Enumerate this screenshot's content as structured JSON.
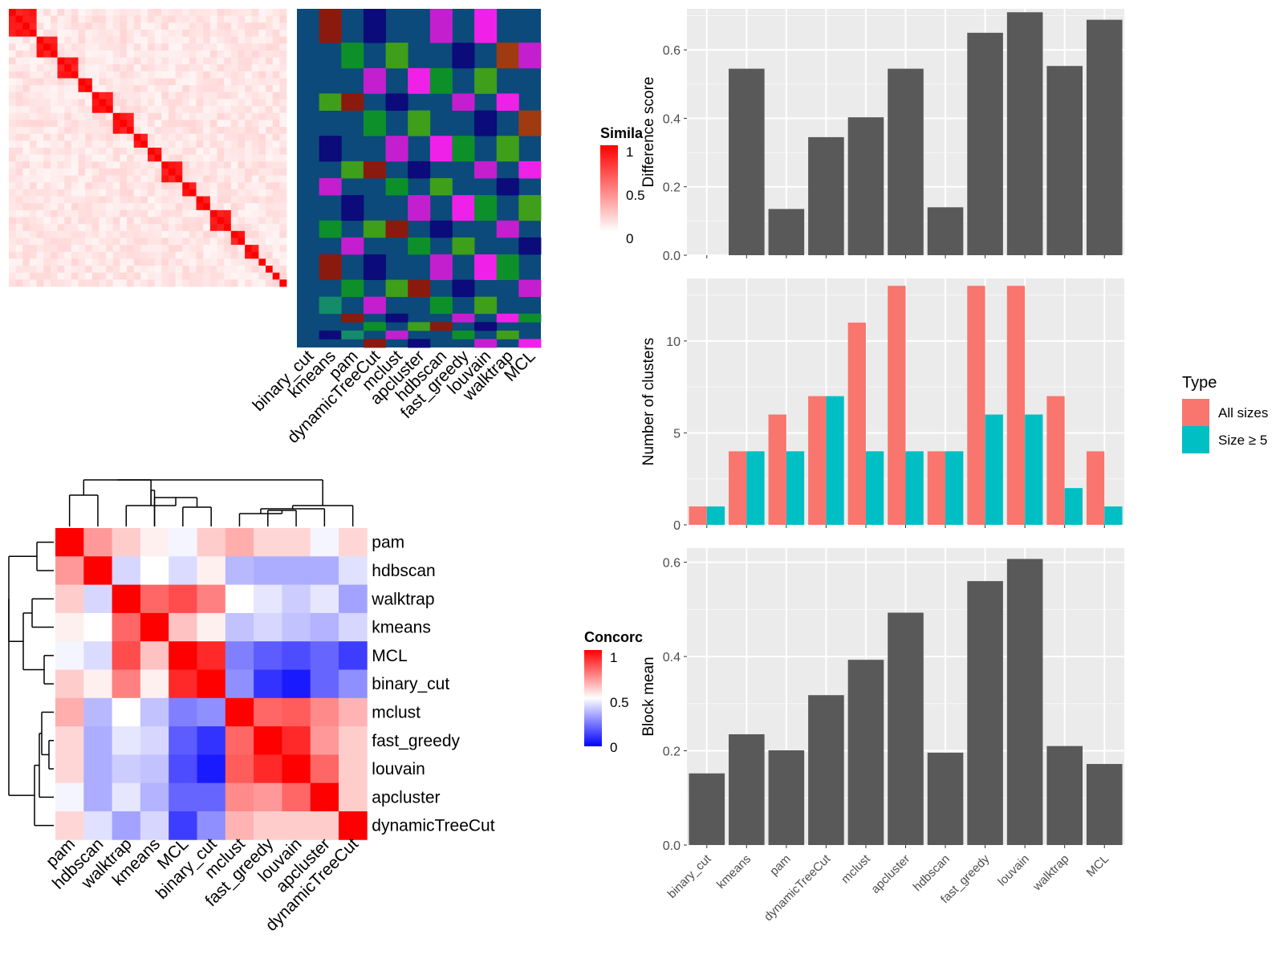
{
  "methods": [
    "binary_cut",
    "kmeans",
    "pam",
    "dynamicTreeCut",
    "mclust",
    "apcluster",
    "hdbscan",
    "fast_greedy",
    "louvain",
    "walktrap",
    "MCL"
  ],
  "similarity_panel": {
    "legend_title": "Simila",
    "legend_ticks": [
      "1",
      "0.5",
      "0"
    ],
    "colors": {
      "low": "#ffffff",
      "high": "#ff0000"
    },
    "n_terms": 40
  },
  "cluster_assignment_panel": {
    "background_color": "#0b4a7a",
    "columns": [
      "binary_cut",
      "kmeans",
      "pam",
      "dynamicTreeCut",
      "mclust",
      "apcluster",
      "hdbscan",
      "fast_greedy",
      "louvain",
      "walktrap",
      "MCL"
    ]
  },
  "concordance_panel": {
    "legend_title": "Concorc",
    "legend_ticks": [
      "1",
      "0.5",
      "0"
    ],
    "colors": {
      "low": "#0000ff",
      "mid": "#ffffff",
      "high": "#ff0000"
    },
    "order": [
      "pam",
      "hdbscan",
      "walktrap",
      "kmeans",
      "MCL",
      "binary_cut",
      "mclust",
      "fast_greedy",
      "louvain",
      "apcluster",
      "dynamicTreeCut"
    ],
    "matrix": [
      [
        1.0,
        0.7,
        0.6,
        0.53,
        0.48,
        0.6,
        0.66,
        0.58,
        0.58,
        0.48,
        0.58
      ],
      [
        0.7,
        1.0,
        0.42,
        0.5,
        0.43,
        0.53,
        0.36,
        0.34,
        0.34,
        0.34,
        0.44
      ],
      [
        0.6,
        0.42,
        1.0,
        0.8,
        0.85,
        0.75,
        0.5,
        0.45,
        0.4,
        0.45,
        0.32
      ],
      [
        0.53,
        0.5,
        0.8,
        1.0,
        0.62,
        0.53,
        0.38,
        0.42,
        0.38,
        0.35,
        0.42
      ],
      [
        0.48,
        0.43,
        0.85,
        0.62,
        1.0,
        0.92,
        0.25,
        0.18,
        0.15,
        0.2,
        0.12
      ],
      [
        0.6,
        0.53,
        0.75,
        0.53,
        0.92,
        1.0,
        0.28,
        0.1,
        0.05,
        0.2,
        0.28
      ],
      [
        0.66,
        0.36,
        0.5,
        0.38,
        0.25,
        0.28,
        1.0,
        0.8,
        0.82,
        0.73,
        0.65
      ],
      [
        0.58,
        0.34,
        0.45,
        0.42,
        0.18,
        0.1,
        0.8,
        1.0,
        0.92,
        0.7,
        0.6
      ],
      [
        0.58,
        0.34,
        0.4,
        0.38,
        0.15,
        0.05,
        0.82,
        0.92,
        1.0,
        0.8,
        0.6
      ],
      [
        0.48,
        0.34,
        0.45,
        0.35,
        0.2,
        0.2,
        0.73,
        0.7,
        0.8,
        1.0,
        0.6
      ],
      [
        0.58,
        0.44,
        0.32,
        0.42,
        0.12,
        0.28,
        0.65,
        0.6,
        0.6,
        0.6,
        1.0
      ]
    ]
  },
  "chart_data": [
    {
      "type": "bar",
      "categories": [
        "binary_cut",
        "kmeans",
        "pam",
        "dynamicTreeCut",
        "mclust",
        "apcluster",
        "hdbscan",
        "fast_greedy",
        "louvain",
        "walktrap",
        "MCL"
      ],
      "values": [
        0.0,
        0.545,
        0.135,
        0.345,
        0.403,
        0.545,
        0.14,
        0.65,
        0.71,
        0.553,
        0.688
      ],
      "title": "",
      "xlabel": "",
      "ylabel": "Difference score",
      "ylim": [
        0,
        0.72
      ],
      "yticks": [
        "0.0",
        "0.2",
        "0.4",
        "0.6"
      ],
      "bar_color": "#595959",
      "grid": true
    },
    {
      "type": "bar",
      "categories": [
        "binary_cut",
        "kmeans",
        "pam",
        "dynamicTreeCut",
        "mclust",
        "apcluster",
        "hdbscan",
        "fast_greedy",
        "louvain",
        "walktrap",
        "MCL"
      ],
      "series": [
        {
          "name": "All sizes",
          "color": "#f8766d",
          "values": [
            1,
            4,
            6,
            7,
            11,
            13,
            4,
            13,
            13,
            7,
            4
          ]
        },
        {
          "name": "Size ≥ 5",
          "color": "#00bfc4",
          "values": [
            1,
            4,
            4,
            7,
            4,
            4,
            4,
            6,
            6,
            2,
            1
          ]
        }
      ],
      "title": "",
      "xlabel": "",
      "ylabel": "Number of clusters",
      "ylim": [
        0,
        13.4
      ],
      "yticks": [
        "0",
        "5",
        "10"
      ],
      "legend_title": "Type",
      "legend_position": "right",
      "grid": true
    },
    {
      "type": "bar",
      "categories": [
        "binary_cut",
        "kmeans",
        "pam",
        "dynamicTreeCut",
        "mclust",
        "apcluster",
        "hdbscan",
        "fast_greedy",
        "louvain",
        "walktrap",
        "MCL"
      ],
      "values": [
        0.152,
        0.235,
        0.201,
        0.318,
        0.393,
        0.493,
        0.196,
        0.56,
        0.607,
        0.21,
        0.172
      ],
      "title": "",
      "xlabel": "",
      "ylabel": "Block mean",
      "ylim": [
        0,
        0.63
      ],
      "yticks": [
        "0.0",
        "0.2",
        "0.4",
        "0.6"
      ],
      "bar_color": "#595959",
      "grid": true
    }
  ]
}
